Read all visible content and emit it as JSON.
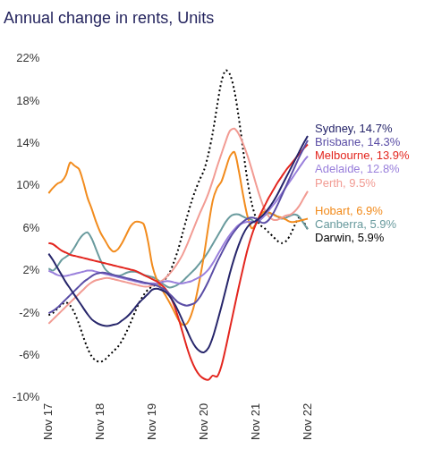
{
  "chart_data": {
    "type": "line",
    "title": "Annual change in rents, Units",
    "categories": [
      "Nov 17",
      null,
      null,
      null,
      null,
      null,
      null,
      null,
      null,
      null,
      null,
      null,
      "Nov 18",
      null,
      null,
      null,
      null,
      null,
      null,
      null,
      null,
      null,
      null,
      null,
      "Nov 19",
      null,
      null,
      null,
      null,
      null,
      null,
      null,
      null,
      null,
      null,
      null,
      "Nov 20",
      null,
      null,
      null,
      null,
      null,
      null,
      null,
      null,
      null,
      null,
      null,
      "Nov 21",
      null,
      null,
      null,
      null,
      null,
      null,
      null,
      null,
      null,
      null,
      null,
      "Nov 22"
    ],
    "ylim": [
      -10,
      22
    ],
    "yticks": [
      {
        "value": -10,
        "label": "-10%"
      },
      {
        "value": -6,
        "label": "-6%"
      },
      {
        "value": -2,
        "label": "-2%"
      },
      {
        "value": 2,
        "label": "2%"
      },
      {
        "value": 6,
        "label": "6%"
      },
      {
        "value": 10,
        "label": "10%"
      },
      {
        "value": 14,
        "label": "14%"
      },
      {
        "value": 18,
        "label": "18%"
      },
      {
        "value": 22,
        "label": "22%"
      }
    ],
    "grid": false,
    "series": [
      {
        "name": "Sydney, 14.7%",
        "color": "#27266b",
        "line_style": "solid",
        "values": [
          3.6,
          3.0,
          2.3,
          1.6,
          0.9,
          0.3,
          -0.3,
          -0.9,
          -1.5,
          -2.1,
          -2.6,
          -2.9,
          -3.1,
          -3.2,
          -3.2,
          -3.1,
          -3.0,
          -2.7,
          -2.4,
          -2.0,
          -1.5,
          -1.0,
          -0.6,
          -0.2,
          0.2,
          0.3,
          0.2,
          0.0,
          -0.4,
          -1.0,
          -1.8,
          -2.7,
          -3.6,
          -4.5,
          -5.2,
          -5.6,
          -5.7,
          -5.3,
          -4.3,
          -2.9,
          -1.4,
          0.2,
          1.8,
          3.2,
          4.4,
          5.4,
          6.1,
          6.5,
          6.7,
          7.0,
          7.4,
          7.9,
          8.5,
          9.2,
          10.0,
          10.8,
          11.6,
          12.4,
          13.2,
          14.0,
          14.7
        ]
      },
      {
        "name": "Brisbane, 14.3%",
        "color": "#5b4ea6",
        "line_style": "solid",
        "values": [
          -2.0,
          -1.8,
          -1.5,
          -1.1,
          -0.7,
          -0.3,
          0.1,
          0.5,
          0.9,
          1.2,
          1.5,
          1.7,
          1.8,
          1.8,
          1.7,
          1.6,
          1.5,
          1.4,
          1.3,
          1.2,
          1.1,
          1.0,
          0.9,
          0.8,
          0.7,
          0.6,
          0.4,
          0.2,
          -0.2,
          -0.6,
          -1.0,
          -1.2,
          -1.3,
          -1.2,
          -1.0,
          -0.5,
          0.2,
          1.0,
          1.9,
          2.8,
          3.6,
          4.4,
          5.1,
          5.7,
          6.2,
          6.6,
          6.9,
          7.0,
          6.9,
          6.6,
          6.5,
          6.8,
          7.4,
          8.2,
          9.1,
          10.0,
          10.9,
          11.8,
          12.7,
          13.5,
          14.3
        ]
      },
      {
        "name": "Melbourne, 13.9%",
        "color": "#e3261f",
        "line_style": "solid",
        "values": [
          4.6,
          4.5,
          4.2,
          3.9,
          3.7,
          3.5,
          3.4,
          3.3,
          3.2,
          3.1,
          3.0,
          2.9,
          2.8,
          2.7,
          2.6,
          2.5,
          2.4,
          2.3,
          2.2,
          2.1,
          2.0,
          1.8,
          1.6,
          1.4,
          1.2,
          1.0,
          0.7,
          0.3,
          -0.3,
          -1.2,
          -2.4,
          -3.8,
          -5.2,
          -6.4,
          -7.3,
          -7.9,
          -8.2,
          -8.3,
          -7.9,
          -8.0,
          -7.0,
          -5.3,
          -3.4,
          -1.5,
          0.4,
          2.2,
          3.9,
          5.3,
          6.4,
          7.3,
          8.1,
          8.9,
          9.6,
          10.3,
          10.9,
          11.5,
          12.0,
          12.5,
          13.0,
          13.5,
          13.9
        ]
      },
      {
        "name": "Adelaide, 12.8%",
        "color": "#9a80dc",
        "line_style": "solid",
        "values": [
          2.0,
          1.8,
          1.6,
          1.5,
          1.5,
          1.6,
          1.7,
          1.8,
          1.9,
          2.0,
          2.0,
          1.9,
          1.8,
          1.7,
          1.6,
          1.5,
          1.4,
          1.3,
          1.2,
          1.1,
          1.0,
          0.9,
          0.8,
          0.8,
          0.8,
          0.8,
          0.9,
          1.0,
          1.0,
          0.9,
          0.8,
          0.8,
          0.9,
          1.0,
          1.2,
          1.4,
          1.7,
          2.1,
          2.7,
          3.4,
          4.1,
          4.8,
          5.4,
          5.9,
          6.3,
          6.5,
          6.6,
          6.6,
          6.6,
          6.8,
          7.2,
          7.7,
          8.2,
          8.7,
          9.3,
          9.9,
          10.5,
          11.1,
          11.7,
          12.3,
          12.8
        ]
      },
      {
        "name": "Perth, 9.5%",
        "color": "#f29c94",
        "line_style": "solid",
        "values": [
          -3.0,
          -2.6,
          -2.2,
          -1.8,
          -1.4,
          -1.0,
          -0.6,
          -0.2,
          0.2,
          0.6,
          0.9,
          1.1,
          1.2,
          1.3,
          1.3,
          1.2,
          1.1,
          1.0,
          0.9,
          0.8,
          0.7,
          0.6,
          0.5,
          0.5,
          0.6,
          0.8,
          1.0,
          1.3,
          1.7,
          2.2,
          2.8,
          3.5,
          4.4,
          5.4,
          6.4,
          7.4,
          8.3,
          9.3,
          10.5,
          11.8,
          13.0,
          14.2,
          15.2,
          15.4,
          14.9,
          14.0,
          12.9,
          11.6,
          10.2,
          8.9,
          7.8,
          7.1,
          6.8,
          6.8,
          7.0,
          7.2,
          7.3,
          7.6,
          8.1,
          8.8,
          9.5
        ]
      },
      {
        "name": "Hobart, 6.9%",
        "color": "#f28c1e",
        "line_style": "solid",
        "values": [
          9.3,
          9.8,
          10.2,
          10.4,
          11.0,
          12.2,
          11.9,
          11.6,
          10.4,
          8.9,
          7.8,
          6.6,
          5.6,
          4.9,
          4.2,
          3.8,
          4.0,
          4.6,
          5.4,
          6.2,
          6.6,
          6.6,
          6.4,
          4.8,
          2.5,
          1.2,
          0.4,
          -0.3,
          -1.0,
          -1.8,
          -2.6,
          -3.1,
          -3.0,
          -2.2,
          -0.8,
          1.2,
          3.5,
          6.2,
          8.6,
          9.8,
          10.4,
          11.6,
          12.8,
          13.2,
          11.5,
          9.2,
          7.2,
          6.0,
          6.4,
          7.2,
          7.6,
          7.5,
          7.3,
          7.1,
          7.0,
          6.8,
          6.6,
          6.6,
          6.7,
          6.8,
          6.9
        ]
      },
      {
        "name": "Canberra, 5.9%",
        "color": "#6a9b9e",
        "line_style": "solid",
        "values": [
          2.2,
          2.0,
          2.4,
          3.0,
          3.3,
          3.6,
          4.2,
          4.9,
          5.4,
          5.6,
          5.0,
          4.0,
          3.0,
          2.2,
          1.8,
          1.6,
          1.5,
          1.6,
          1.8,
          1.9,
          1.9,
          1.8,
          1.6,
          1.5,
          1.4,
          1.2,
          0.9,
          0.6,
          0.4,
          0.5,
          0.7,
          1.0,
          1.4,
          1.8,
          2.2,
          2.7,
          3.2,
          3.8,
          4.5,
          5.2,
          5.9,
          6.6,
          7.1,
          7.3,
          7.3,
          7.1,
          6.9,
          6.8,
          6.5,
          6.8,
          7.2,
          7.4,
          7.3,
          7.1,
          6.9,
          7.0,
          7.2,
          7.3,
          7.1,
          6.5,
          5.9
        ]
      },
      {
        "name": "Darwin, 5.9%",
        "color": "#000000",
        "line_style": "dotted",
        "values": [
          -2.2,
          -2.0,
          -1.6,
          -1.2,
          -1.0,
          -1.3,
          -2.0,
          -3.0,
          -4.2,
          -5.3,
          -6.1,
          -6.5,
          -6.6,
          -6.4,
          -6.0,
          -5.6,
          -5.2,
          -4.6,
          -3.8,
          -2.9,
          -1.9,
          -1.0,
          -0.3,
          0.2,
          0.5,
          0.7,
          0.9,
          1.2,
          1.8,
          2.8,
          4.0,
          5.5,
          7.0,
          8.4,
          9.6,
          10.6,
          11.5,
          13.0,
          15.0,
          17.5,
          19.8,
          20.9,
          20.5,
          19.0,
          16.5,
          13.5,
          10.6,
          8.4,
          7.0,
          6.3,
          6.0,
          5.6,
          5.2,
          4.8,
          4.6,
          4.8,
          5.4,
          6.3,
          7.0,
          6.6,
          5.9
        ]
      }
    ]
  }
}
